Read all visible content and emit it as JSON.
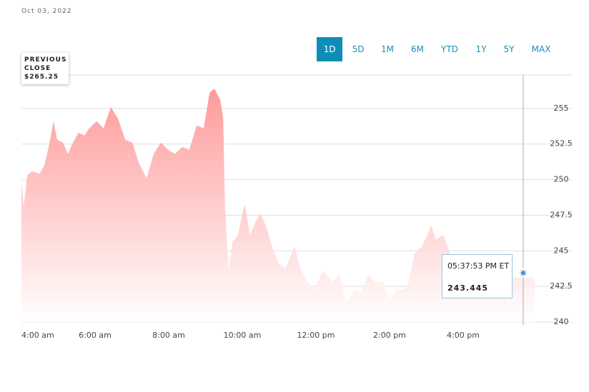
{
  "date": "Oct 03, 2022",
  "range_buttons": [
    "1D",
    "5D",
    "1M",
    "6M",
    "YTD",
    "1Y",
    "5Y",
    "MAX"
  ],
  "active_range": "1D",
  "previous_close": {
    "label": "PREVIOUS CLOSE",
    "value_label": "$265.25"
  },
  "tooltip": {
    "time": "05:37:53 PM ET",
    "value": 243.445,
    "x": 17.63
  },
  "chart_data": {
    "type": "area",
    "color": "#ff9a9a",
    "x": [
      4.0,
      4.06,
      4.16,
      4.29,
      4.49,
      4.62,
      4.74,
      4.87,
      4.97,
      5.13,
      5.26,
      5.4,
      5.55,
      5.71,
      5.84,
      6.04,
      6.23,
      6.43,
      6.62,
      6.82,
      7.01,
      7.2,
      7.4,
      7.59,
      7.79,
      7.98,
      8.17,
      8.37,
      8.56,
      8.76,
      8.95,
      9.11,
      9.24,
      9.4,
      9.48,
      9.53,
      9.63,
      9.73,
      9.88,
      10.06,
      10.21,
      10.37,
      10.5,
      10.66,
      10.83,
      10.99,
      11.18,
      11.42,
      11.57,
      11.77,
      11.96,
      12.19,
      12.45,
      12.64,
      12.83,
      13.03,
      13.22,
      13.42,
      13.61,
      13.81,
      14.0,
      14.19,
      14.39,
      14.52,
      14.68,
      14.87,
      15.03,
      15.13,
      15.26,
      15.46,
      15.65,
      15.84,
      16.23,
      17.01,
      17.59,
      17.94
    ],
    "values": [
      249.8,
      248.1,
      250.3,
      250.6,
      250.4,
      251.0,
      252.3,
      254.1,
      252.8,
      252.6,
      251.8,
      252.6,
      253.3,
      253.1,
      253.6,
      254.1,
      253.6,
      255.1,
      254.3,
      252.8,
      252.6,
      251.1,
      250.1,
      251.8,
      252.6,
      252.1,
      251.8,
      252.3,
      252.1,
      253.8,
      253.6,
      256.1,
      256.4,
      255.6,
      254.3,
      248.1,
      243.6,
      245.6,
      246.1,
      248.3,
      246.1,
      247.1,
      247.6,
      246.6,
      245.1,
      244.1,
      243.8,
      245.3,
      243.8,
      242.8,
      242.3,
      243.6,
      242.8,
      243.3,
      241.3,
      242.3,
      242.1,
      243.3,
      242.8,
      242.8,
      241.6,
      242.3,
      242.3,
      242.8,
      244.8,
      245.3,
      246.1,
      246.8,
      245.8,
      246.1,
      244.8,
      243.6,
      243.3,
      243.2,
      243.1,
      243.1
    ],
    "xlim": [
      4,
      18
    ],
    "xticks": [
      {
        "value": 4,
        "label": "4:00 am"
      },
      {
        "value": 6,
        "label": "6:00 am"
      },
      {
        "value": 8,
        "label": "8:00 am"
      },
      {
        "value": 10,
        "label": "10:00 am"
      },
      {
        "value": 12,
        "label": "12:00 pm"
      },
      {
        "value": 14,
        "label": "2:00 pm"
      },
      {
        "value": 16,
        "label": "4:00 pm"
      }
    ],
    "ylim": [
      240,
      257.5
    ],
    "yticks": [
      240,
      242.5,
      245,
      247.5,
      250,
      252.5,
      255
    ],
    "grid": true
  }
}
